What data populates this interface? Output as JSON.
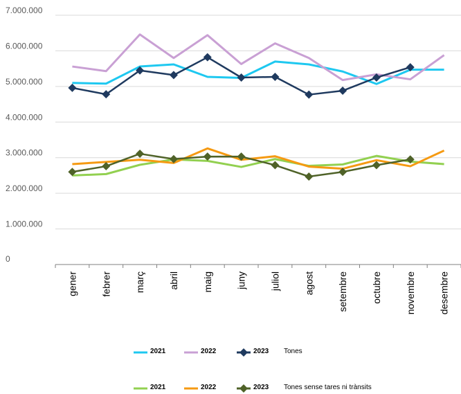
{
  "chart_data": {
    "type": "line",
    "categories": [
      "gener",
      "febrer",
      "març",
      "abril",
      "maig",
      "juny",
      "juliol",
      "agost",
      "setembre",
      "octubre",
      "novembre",
      "desembre"
    ],
    "ylim": [
      0,
      7000000
    ],
    "yticks": [
      0,
      1000000,
      2000000,
      3000000,
      4000000,
      5000000,
      6000000,
      7000000
    ],
    "ytick_labels": [
      "0",
      "1.000.000",
      "2.000.000",
      "3.000.000",
      "4.000.000",
      "5.000.000",
      "6.000.000",
      "7.000.000"
    ],
    "grid": true,
    "legend_position": "bottom",
    "series": [
      {
        "name": "2021",
        "group": "Tones",
        "color": "#1ec8f0",
        "marker": "none",
        "values": [
          5100000,
          5080000,
          5560000,
          5620000,
          5270000,
          5240000,
          5700000,
          5620000,
          5420000,
          5070000,
          5470000,
          5470000
        ]
      },
      {
        "name": "2022",
        "group": "Tones",
        "color": "#c9a0d4",
        "marker": "none",
        "values": [
          5560000,
          5430000,
          6460000,
          5800000,
          6440000,
          5630000,
          6210000,
          5800000,
          5180000,
          5340000,
          5200000,
          5880000
        ]
      },
      {
        "name": "2023",
        "group": "Tones",
        "color": "#1f3a5f",
        "marker": "diamond",
        "values": [
          4960000,
          4780000,
          5450000,
          5320000,
          5820000,
          5250000,
          5270000,
          4770000,
          4880000,
          5250000,
          5540000,
          null
        ]
      },
      {
        "name": "2021",
        "group": "Tones sense tares ni trànsits",
        "color": "#92d050",
        "marker": "none",
        "values": [
          2500000,
          2540000,
          2800000,
          2950000,
          2910000,
          2740000,
          2960000,
          2770000,
          2810000,
          3050000,
          2890000,
          2820000
        ]
      },
      {
        "name": "2022",
        "group": "Tones sense tares ni trànsits",
        "color": "#f59a12",
        "marker": "none",
        "values": [
          2820000,
          2880000,
          2940000,
          2850000,
          3260000,
          2940000,
          3040000,
          2750000,
          2690000,
          2930000,
          2760000,
          3200000
        ]
      },
      {
        "name": "2023",
        "group": "Tones sense tares ni trànsits",
        "color": "#4f6228",
        "marker": "diamond",
        "values": [
          2600000,
          2760000,
          3110000,
          2960000,
          3030000,
          3030000,
          2790000,
          2470000,
          2600000,
          2790000,
          2950000,
          null
        ]
      }
    ],
    "legend": [
      {
        "label": "2021",
        "color": "#1ec8f0",
        "marker": "none"
      },
      {
        "label": "2022",
        "color": "#c9a0d4",
        "marker": "none"
      },
      {
        "label": "2023",
        "color": "#1f3a5f",
        "marker": "diamond"
      },
      {
        "label": "Tones",
        "type": "text"
      },
      {
        "label": "2021",
        "color": "#92d050",
        "marker": "none"
      },
      {
        "label": "2022",
        "color": "#f59a12",
        "marker": "none"
      },
      {
        "label": "2023",
        "color": "#4f6228",
        "marker": "diamond"
      },
      {
        "label": "Tones sense tares ni trànsits",
        "type": "text"
      }
    ]
  }
}
